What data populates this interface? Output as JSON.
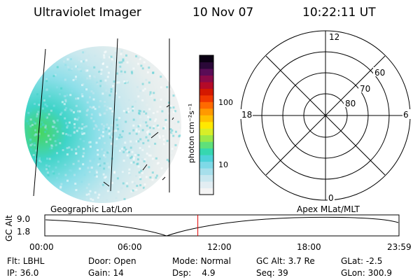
{
  "header": {
    "instrument": "Ultraviolet Imager",
    "date": "10 Nov 07",
    "time": "10:22:11 UT"
  },
  "colorbar": {
    "unit_label": "photon cm⁻²s⁻¹",
    "ticks": [
      "100",
      "10"
    ],
    "colors": [
      "#f4f4f4",
      "#e2edf2",
      "#c9e7ef",
      "#a7dfeb",
      "#7ed9e7",
      "#4ed2d9",
      "#36d7b0",
      "#5fe07a",
      "#9be848",
      "#d7ee28",
      "#ffe800",
      "#ffc000",
      "#ff9900",
      "#ff6a00",
      "#f03800",
      "#d41800",
      "#b40a28",
      "#8a0a48",
      "#5a0c56",
      "#2a0838",
      "#0b0014"
    ]
  },
  "polar_grid": {
    "mlt_labels": {
      "top": "12",
      "left": "18",
      "right": "6",
      "bottom": "0"
    },
    "lat_labels": [
      "60",
      "70",
      "80"
    ]
  },
  "orbit_panel": {
    "ylabel": "GC Alt",
    "y_ticks": [
      "9.0",
      "1.8"
    ],
    "left_label": "Geographic Lat/Lon",
    "right_label": "Apex MLat/MLT",
    "x_ticks": [
      "00:00",
      "06:00",
      "12:00",
      "18:00",
      "23:59"
    ],
    "current_time_fraction": 0.432
  },
  "info": {
    "row1": [
      {
        "label": "Flt:",
        "value": "LBHL"
      },
      {
        "label": "Door:",
        "value": "Open"
      },
      {
        "label": "Mode:",
        "value": "Normal"
      },
      {
        "label": "GC Alt:",
        "value": "3.7 Re"
      },
      {
        "label": "GLat:",
        "value": "-2.5"
      }
    ],
    "row2": [
      {
        "label": "IP:",
        "value": "36.0"
      },
      {
        "label": "Gain:",
        "value": "14"
      },
      {
        "label": "Dsp:",
        "value": "4.9"
      },
      {
        "label": "Seq:",
        "value": "39"
      },
      {
        "label": "GLon:",
        "value": "300.9"
      }
    ]
  }
}
